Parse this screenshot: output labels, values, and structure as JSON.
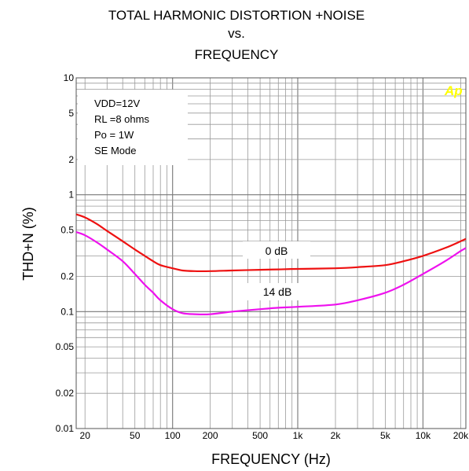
{
  "chart_data": {
    "type": "line",
    "title": [
      "TOTAL HARMONIC DISTORTION +NOISE",
      "vs.",
      "FREQUENCY"
    ],
    "xlabel": "FREQUENCY (Hz)",
    "ylabel": "THD+N (%)",
    "x_scale": "log",
    "y_scale": "log",
    "xlim": [
      17,
      22000
    ],
    "ylim": [
      0.01,
      10
    ],
    "x_ticks": [
      {
        "value": 20,
        "label": "20"
      },
      {
        "value": 50,
        "label": "50"
      },
      {
        "value": 100,
        "label": "100"
      },
      {
        "value": 200,
        "label": "200"
      },
      {
        "value": 500,
        "label": "500"
      },
      {
        "value": 1000,
        "label": "1k"
      },
      {
        "value": 2000,
        "label": "2k"
      },
      {
        "value": 5000,
        "label": "5k"
      },
      {
        "value": 10000,
        "label": "10k"
      },
      {
        "value": 20000,
        "label": "20k"
      }
    ],
    "y_ticks": [
      {
        "value": 10,
        "label": "10"
      },
      {
        "value": 5,
        "label": "5"
      },
      {
        "value": 2,
        "label": "2"
      },
      {
        "value": 1,
        "label": "1"
      },
      {
        "value": 0.5,
        "label": "0.5"
      },
      {
        "value": 0.2,
        "label": "0.2"
      },
      {
        "value": 0.1,
        "label": "0.1"
      },
      {
        "value": 0.05,
        "label": "0.05"
      },
      {
        "value": 0.02,
        "label": "0.02"
      },
      {
        "value": 0.01,
        "label": "0.01"
      }
    ],
    "grid": true,
    "annotation_lines": [
      "VDD=12V",
      "RL =8 ohms",
      "Po = 1W",
      "SE Mode"
    ],
    "logo_text": "Ap",
    "series": [
      {
        "name": "0 dB",
        "color": "#ee1111",
        "x": [
          17,
          20,
          25,
          30,
          40,
          50,
          60,
          70,
          80,
          100,
          120,
          150,
          200,
          300,
          500,
          700,
          1000,
          2000,
          3000,
          5000,
          7000,
          10000,
          15000,
          20000,
          22000
        ],
        "y": [
          0.68,
          0.64,
          0.56,
          0.49,
          0.4,
          0.34,
          0.3,
          0.27,
          0.25,
          0.235,
          0.225,
          0.222,
          0.222,
          0.225,
          0.228,
          0.23,
          0.232,
          0.235,
          0.24,
          0.25,
          0.27,
          0.3,
          0.35,
          0.4,
          0.42
        ]
      },
      {
        "name": "14 dB",
        "color": "#ee11ee",
        "x": [
          17,
          20,
          25,
          30,
          40,
          50,
          60,
          70,
          80,
          100,
          120,
          150,
          200,
          300,
          500,
          700,
          1000,
          2000,
          3000,
          5000,
          7000,
          10000,
          15000,
          20000,
          22000
        ],
        "y": [
          0.48,
          0.45,
          0.39,
          0.34,
          0.27,
          0.21,
          0.17,
          0.145,
          0.125,
          0.105,
          0.097,
          0.095,
          0.095,
          0.1,
          0.105,
          0.108,
          0.11,
          0.115,
          0.125,
          0.145,
          0.17,
          0.21,
          0.27,
          0.33,
          0.35
        ]
      }
    ]
  }
}
